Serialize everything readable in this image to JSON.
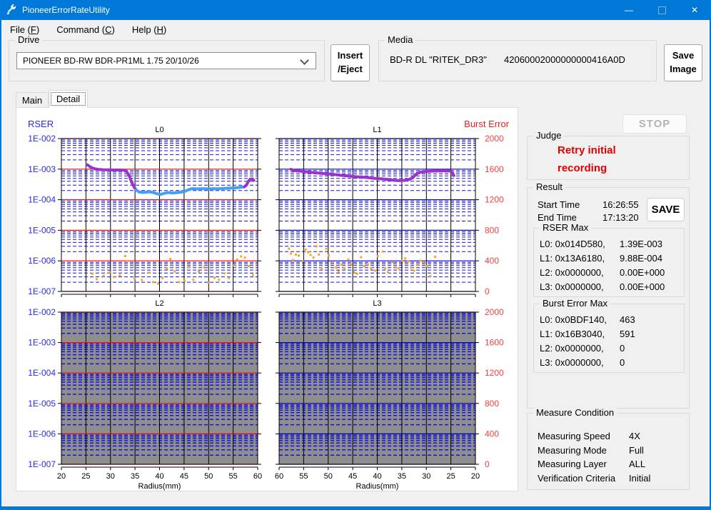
{
  "title_bar": {
    "title": "PioneerErrorRateUtility",
    "controls": {
      "minimize": "—",
      "close": "✕"
    }
  },
  "menu": [
    {
      "pre": "File (",
      "key": "F",
      "post": ")"
    },
    {
      "pre": "Command (",
      "key": "C",
      "post": ")"
    },
    {
      "pre": "Help (",
      "key": "H",
      "post": ")"
    }
  ],
  "toolbar": {
    "drive": {
      "label": "Drive",
      "value": "PIONEER BD-RW BDR-PR1ML 1.75 20/10/26"
    },
    "insert_eject": {
      "line1": "Insert",
      "line2": "/Eject"
    },
    "media": {
      "label": "Media",
      "type": "BD-R DL \"RITEK_DR3\"",
      "id": "42060002000000000416A0D"
    },
    "save_image": {
      "line1": "Save",
      "line2": "Image"
    }
  },
  "tabs": [
    {
      "label": "Main"
    },
    {
      "label": "Detail"
    }
  ],
  "right_panel": {
    "stop_button": "STOP",
    "judge": {
      "label": "Judge",
      "line1": "Retry initial",
      "line2": "recording"
    },
    "result": {
      "label": "Result",
      "start_time_label": "Start Time",
      "start_time": "16:26:55",
      "end_time_label": "End Time",
      "end_time": "17:13:20",
      "save_button": "SAVE",
      "rser_max": {
        "label": "RSER Max",
        "rows": [
          {
            "addr": "L0: 0x014D580,",
            "value": "1.39E-003"
          },
          {
            "addr": "L1: 0x13A6180,",
            "value": "9.88E-004"
          },
          {
            "addr": "L2: 0x0000000,",
            "value": "0.00E+000"
          },
          {
            "addr": "L3: 0x0000000,",
            "value": "0.00E+000"
          }
        ]
      },
      "burst_error_max": {
        "label": "Burst Error Max",
        "rows": [
          {
            "addr": "L0: 0x0BDF140,",
            "value": "463"
          },
          {
            "addr": "L1: 0x16B3040,",
            "value": "591"
          },
          {
            "addr": "L2: 0x0000000,",
            "value": "0"
          },
          {
            "addr": "L3: 0x0000000,",
            "value": "0"
          }
        ]
      }
    },
    "measure_condition": {
      "label": "Measure Condition",
      "rows": [
        {
          "name": "Measuring Speed",
          "value": "4X"
        },
        {
          "name": "Measuring Mode",
          "value": "Full"
        },
        {
          "name": "Measuring Layer",
          "value": "ALL"
        },
        {
          "name": "Verification Criteria",
          "value": "Initial"
        }
      ]
    }
  },
  "chart_data": {
    "type": "line",
    "x_axis": {
      "label": "Radius(mm)",
      "min": 20,
      "max": 60,
      "tick_step": 5
    },
    "y_left": {
      "title": "RSER",
      "scale": "log",
      "ticks": [
        "1E-002",
        "1E-003",
        "1E-004",
        "1E-005",
        "1E-006",
        "1E-007"
      ],
      "color": "#2a2ae6"
    },
    "y_right": {
      "title": "Burst Error",
      "min": 0,
      "max": 2000,
      "ticks": [
        "2000",
        "1600",
        "1200",
        "800",
        "400",
        "0"
      ],
      "color": "#f44040"
    },
    "colors": {
      "rser_purple": "#9933cc",
      "rser_cyan": "#44a0f5",
      "burst_dot": "#ffa41e",
      "minor_grid": "#1515d6",
      "disabled_bg": "#8e8e8e"
    },
    "panels": [
      {
        "title": "L0",
        "row": 0,
        "col": 0,
        "x_reversed": false,
        "disabled": false,
        "major_grid_color": "#ff0000",
        "x_tick_labels": null,
        "rser_segments": [
          {
            "color": "#9933cc",
            "points": [
              [
                25.3,
                0.00139
              ],
              [
                26,
                0.00115
              ],
              [
                26.8,
                0.00102
              ],
              [
                27.6,
                0.00098
              ],
              [
                28.5,
                0.00096
              ],
              [
                29.5,
                0.00095
              ],
              [
                30.5,
                0.00094
              ],
              [
                31.5,
                0.00094
              ],
              [
                32.5,
                0.00093
              ],
              [
                33.2,
                0.00088
              ],
              [
                33.8,
                0.00062
              ],
              [
                34.3,
                0.00038
              ],
              [
                34.8,
                0.00026
              ],
              [
                35.2,
                0.00021
              ]
            ]
          },
          {
            "color": "#44a0f5",
            "points": [
              [
                35.2,
                0.00021
              ],
              [
                35.8,
                0.00018
              ],
              [
                36.5,
                0.000172
              ],
              [
                37.2,
                0.000176
              ],
              [
                38,
                0.000182
              ],
              [
                38.8,
                0.00017
              ],
              [
                39.5,
                0.000156
              ],
              [
                40.2,
                0.00015
              ],
              [
                41,
                0.000162
              ],
              [
                41.8,
                0.000172
              ],
              [
                42.6,
                0.000166
              ],
              [
                43.4,
                0.00017
              ],
              [
                44.2,
                0.000176
              ],
              [
                45,
                0.000182
              ],
              [
                45.8,
                0.00021
              ],
              [
                46.6,
                0.000232
              ],
              [
                47.4,
                0.000226
              ],
              [
                48.2,
                0.000228
              ],
              [
                49,
                0.00023
              ],
              [
                50,
                0.000227
              ],
              [
                51,
                0.00023
              ],
              [
                52,
                0.000229
              ],
              [
                53,
                0.000233
              ],
              [
                54,
                0.000238
              ],
              [
                55,
                0.000243
              ],
              [
                56,
                0.00025
              ],
              [
                56.8,
                0.000258
              ],
              [
                57.3,
                0.000265
              ]
            ]
          },
          {
            "color": "#9933cc",
            "points": [
              [
                57.3,
                0.000265
              ],
              [
                57.7,
                0.0003
              ],
              [
                58.1,
                0.0004
              ],
              [
                58.5,
                0.00047
              ],
              [
                58.9,
                0.00048
              ],
              [
                59.2,
                0.00043
              ]
            ]
          }
        ],
        "burst_points": [
          [
            26.3,
            230
          ],
          [
            27.2,
            160
          ],
          [
            28.6,
            205
          ],
          [
            29.8,
            252
          ],
          [
            30.7,
            190
          ],
          [
            31.9,
            210
          ],
          [
            33.0,
            463
          ],
          [
            33.5,
            395
          ],
          [
            34.9,
            170
          ],
          [
            36.4,
            150
          ],
          [
            37.9,
            248
          ],
          [
            38.7,
            122
          ],
          [
            39.7,
            102
          ],
          [
            40.6,
            176
          ],
          [
            41.5,
            300
          ],
          [
            42.2,
            425
          ],
          [
            43.1,
            262
          ],
          [
            44.0,
            122
          ],
          [
            45.1,
            136
          ],
          [
            46.0,
            322
          ],
          [
            46.9,
            152
          ],
          [
            48.0,
            262
          ],
          [
            49.1,
            312
          ],
          [
            50.0,
            116
          ],
          [
            51.2,
            176
          ],
          [
            52.1,
            152
          ],
          [
            53.2,
            236
          ],
          [
            54.1,
            176
          ],
          [
            55.0,
            342
          ],
          [
            55.8,
            418
          ],
          [
            56.6,
            458
          ],
          [
            57.4,
            442
          ],
          [
            58.2,
            332
          ],
          [
            59.0,
            216
          ]
        ]
      },
      {
        "title": "L1",
        "row": 0,
        "col": 1,
        "x_reversed": true,
        "disabled": false,
        "major_grid_color": "#0000cc",
        "x_tick_labels": null,
        "rser_segments": [
          {
            "color": "#9933cc",
            "points": [
              [
                57.6,
                0.000988
              ],
              [
                57.2,
                0.00092
              ],
              [
                56.5,
                0.00088
              ],
              [
                55.5,
                0.00085
              ],
              [
                54.5,
                0.00082
              ],
              [
                53.5,
                0.00079
              ],
              [
                52.5,
                0.00076
              ],
              [
                51.5,
                0.00073
              ],
              [
                50.5,
                0.00071
              ],
              [
                49.5,
                0.00069
              ],
              [
                48.5,
                0.00066
              ],
              [
                47.5,
                0.00063
              ],
              [
                46.5,
                0.00061
              ],
              [
                45.5,
                0.00059
              ],
              [
                44.5,
                0.00057
              ],
              [
                43.5,
                0.00055
              ],
              [
                42.5,
                0.00054
              ],
              [
                41.5,
                0.00052
              ],
              [
                40.5,
                0.0005
              ],
              [
                39.5,
                0.00049
              ],
              [
                38.5,
                0.00047
              ],
              [
                37.5,
                0.00045
              ],
              [
                36.5,
                0.00043
              ],
              [
                35.5,
                0.00042
              ],
              [
                34.5,
                0.00043
              ],
              [
                33.5,
                0.00046
              ],
              [
                32.8,
                0.00052
              ],
              [
                32.2,
                0.00066
              ],
              [
                31.6,
                0.00076
              ],
              [
                31,
                0.00081
              ],
              [
                30,
                0.00084
              ],
              [
                29,
                0.00086
              ],
              [
                28,
                0.00087
              ],
              [
                27,
                0.00088
              ],
              [
                26,
                0.00089
              ],
              [
                25.2,
                0.00087
              ],
              [
                24.7,
                0.00075
              ],
              [
                24.4,
                0.00062
              ]
            ]
          }
        ],
        "burst_points": [
          [
            58.0,
            560
          ],
          [
            57.6,
            495
          ],
          [
            57.2,
            410
          ],
          [
            56.6,
            480
          ],
          [
            56.0,
            468
          ],
          [
            55.2,
            398
          ],
          [
            54.6,
            548
          ],
          [
            54.1,
            512
          ],
          [
            53.6,
            478
          ],
          [
            53.0,
            442
          ],
          [
            52.4,
            591
          ],
          [
            51.9,
            482
          ],
          [
            51.3,
            302
          ],
          [
            50.4,
            558
          ],
          [
            49.9,
            470
          ],
          [
            49.0,
            382
          ],
          [
            48.4,
            312
          ],
          [
            47.9,
            262
          ],
          [
            47.3,
            352
          ],
          [
            46.7,
            302
          ],
          [
            45.9,
            418
          ],
          [
            45.3,
            355
          ],
          [
            44.7,
            252
          ],
          [
            44.1,
            232
          ],
          [
            43.3,
            448
          ],
          [
            42.7,
            332
          ],
          [
            41.9,
            352
          ],
          [
            41.3,
            302
          ],
          [
            40.4,
            272
          ],
          [
            39.9,
            462
          ],
          [
            38.9,
            522
          ],
          [
            38.4,
            302
          ],
          [
            37.8,
            252
          ],
          [
            36.9,
            382
          ],
          [
            36.3,
            312
          ],
          [
            35.7,
            302
          ],
          [
            34.9,
            402
          ],
          [
            34.3,
            432
          ],
          [
            33.7,
            392
          ],
          [
            33.1,
            312
          ],
          [
            32.5,
            272
          ],
          [
            31.8,
            348
          ],
          [
            31.2,
            402
          ],
          [
            30.6,
            382
          ],
          [
            29.8,
            332
          ],
          [
            29.2,
            202
          ],
          [
            28.2,
            452
          ]
        ]
      },
      {
        "title": "L2",
        "row": 1,
        "col": 0,
        "x_reversed": false,
        "disabled": true,
        "major_grid_color": "#ff0000",
        "x_tick_labels": [
          "20",
          "25",
          "30",
          "35",
          "40",
          "45",
          "50",
          "55",
          "60"
        ],
        "rser_segments": [],
        "burst_points": []
      },
      {
        "title": "L3",
        "row": 1,
        "col": 1,
        "x_reversed": true,
        "disabled": true,
        "major_grid_color": "#0000bb",
        "x_tick_labels": [
          "60",
          "55",
          "50",
          "45",
          "40",
          "35",
          "30",
          "25",
          "20"
        ],
        "rser_segments": [],
        "burst_points": []
      }
    ]
  }
}
